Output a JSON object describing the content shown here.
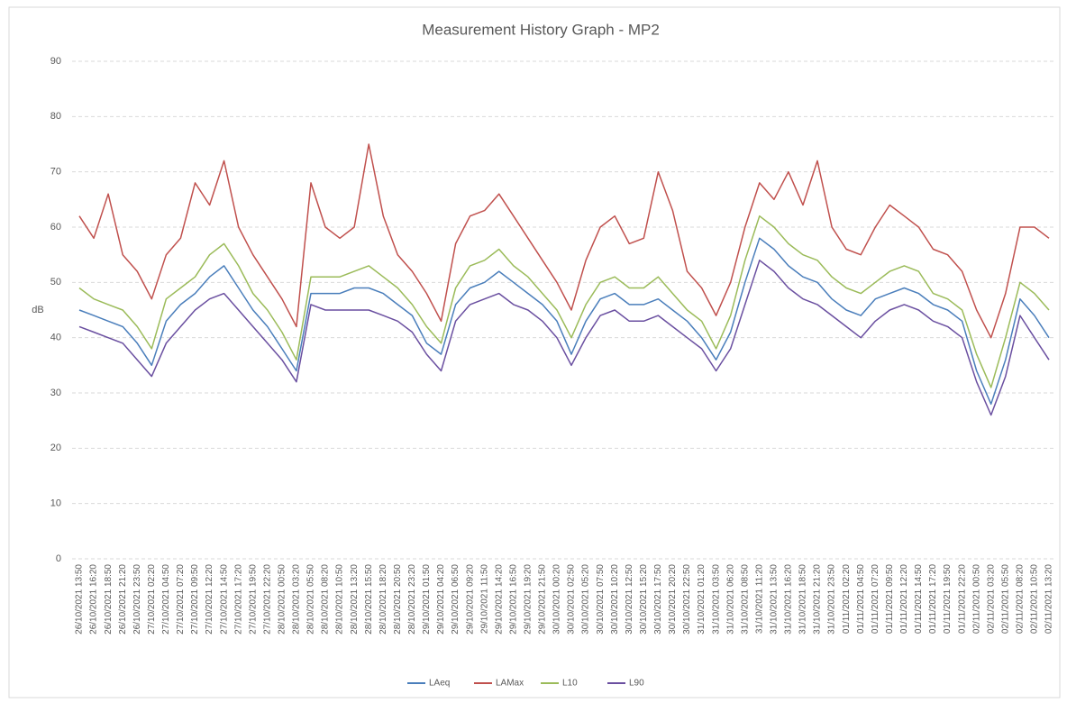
{
  "chart_data": {
    "type": "line",
    "title": "Measurement History Graph - MP2",
    "y_label": "dB",
    "categories": [
      "26/10/2021 13:50",
      "26/10/2021 16:20",
      "26/10/2021 18:50",
      "26/10/2021 21:20",
      "26/10/2021 23:50",
      "27/10/2021 02:20",
      "27/10/2021 04:50",
      "27/10/2021 07:20",
      "27/10/2021 09:50",
      "27/10/2021 12:20",
      "27/10/2021 14:50",
      "27/10/2021 17:20",
      "27/10/2021 19:50",
      "27/10/2021 22:20",
      "28/10/2021 00:50",
      "28/10/2021 03:20",
      "28/10/2021 05:50",
      "28/10/2021 08:20",
      "28/10/2021 10:50",
      "28/10/2021 13:20",
      "28/10/2021 15:50",
      "28/10/2021 18:20",
      "28/10/2021 20:50",
      "28/10/2021 23:20",
      "29/10/2021 01:50",
      "29/10/2021 04:20",
      "29/10/2021 06:50",
      "29/10/2021 09:20",
      "29/10/2021 11:50",
      "29/10/2021 14:20",
      "29/10/2021 16:50",
      "29/10/2021 19:20",
      "29/10/2021 21:50",
      "30/10/2021 00:20",
      "30/10/2021 02:50",
      "30/10/2021 05:20",
      "30/10/2021 07:50",
      "30/10/2021 10:20",
      "30/10/2021 12:50",
      "30/10/2021 15:20",
      "30/10/2021 17:50",
      "30/10/2021 20:20",
      "30/10/2021 22:50",
      "31/10/2021 01:20",
      "31/10/2021 03:50",
      "31/10/2021 06:20",
      "31/10/2021 08:50",
      "31/10/2021 11:20",
      "31/10/2021 13:50",
      "31/10/2021 16:20",
      "31/10/2021 18:50",
      "31/10/2021 21:20",
      "31/10/2021 23:50",
      "01/11/2021 02:20",
      "01/11/2021 04:50",
      "01/11/2021 07:20",
      "01/11/2021 09:50",
      "01/11/2021 12:20",
      "01/11/2021 14:50",
      "01/11/2021 17:20",
      "01/11/2021 19:50",
      "01/11/2021 22:20",
      "02/11/2021 00:50",
      "02/11/2021 03:20",
      "02/11/2021 05:50",
      "02/11/2021 08:20",
      "02/11/2021 10:50",
      "02/11/2021 13:20"
    ],
    "series": [
      {
        "name": "LAeq",
        "color": "#4a7ebb",
        "values": [
          45,
          44,
          43,
          42,
          39,
          35,
          43,
          46,
          48,
          51,
          53,
          49,
          45,
          42,
          38,
          34,
          48,
          48,
          48,
          49,
          49,
          48,
          46,
          44,
          39,
          37,
          46,
          49,
          50,
          52,
          50,
          48,
          46,
          43,
          37,
          43,
          47,
          48,
          46,
          46,
          47,
          45,
          43,
          40,
          36,
          41,
          50,
          58,
          56,
          53,
          51,
          50,
          47,
          45,
          44,
          47,
          48,
          49,
          48,
          46,
          45,
          43,
          34,
          28,
          36,
          47,
          44,
          40
        ]
      },
      {
        "name": "LAMax",
        "color": "#c0504d",
        "values": [
          62,
          58,
          66,
          55,
          52,
          47,
          55,
          58,
          68,
          64,
          72,
          60,
          55,
          51,
          47,
          42,
          68,
          60,
          58,
          60,
          75,
          62,
          55,
          52,
          48,
          43,
          57,
          62,
          63,
          66,
          62,
          58,
          54,
          50,
          45,
          54,
          60,
          62,
          57,
          58,
          70,
          63,
          52,
          49,
          44,
          50,
          60,
          68,
          65,
          70,
          64,
          72,
          60,
          56,
          55,
          60,
          64,
          62,
          60,
          56,
          55,
          52,
          45,
          40,
          48,
          60,
          60,
          58
        ]
      },
      {
        "name": "L10",
        "color": "#9bbb59",
        "values": [
          49,
          47,
          46,
          45,
          42,
          38,
          47,
          49,
          51,
          55,
          57,
          53,
          48,
          45,
          41,
          36,
          51,
          51,
          51,
          52,
          53,
          51,
          49,
          46,
          42,
          39,
          49,
          53,
          54,
          56,
          53,
          51,
          48,
          45,
          40,
          46,
          50,
          51,
          49,
          49,
          51,
          48,
          45,
          43,
          38,
          44,
          54,
          62,
          60,
          57,
          55,
          54,
          51,
          49,
          48,
          50,
          52,
          53,
          52,
          48,
          47,
          45,
          37,
          31,
          40,
          50,
          48,
          45
        ]
      },
      {
        "name": "L90",
        "color": "#6a4fa0",
        "values": [
          42,
          41,
          40,
          39,
          36,
          33,
          39,
          42,
          45,
          47,
          48,
          45,
          42,
          39,
          36,
          32,
          46,
          45,
          45,
          45,
          45,
          44,
          43,
          41,
          37,
          34,
          43,
          46,
          47,
          48,
          46,
          45,
          43,
          40,
          35,
          40,
          44,
          45,
          43,
          43,
          44,
          42,
          40,
          38,
          34,
          38,
          46,
          54,
          52,
          49,
          47,
          46,
          44,
          42,
          40,
          43,
          45,
          46,
          45,
          43,
          42,
          40,
          32,
          26,
          33,
          44,
          40,
          36
        ]
      }
    ],
    "ylim": [
      0,
      90
    ],
    "yticks": [
      0,
      10,
      20,
      30,
      40,
      50,
      60,
      70,
      80,
      90
    ],
    "grid": true,
    "legend": "bottom"
  }
}
